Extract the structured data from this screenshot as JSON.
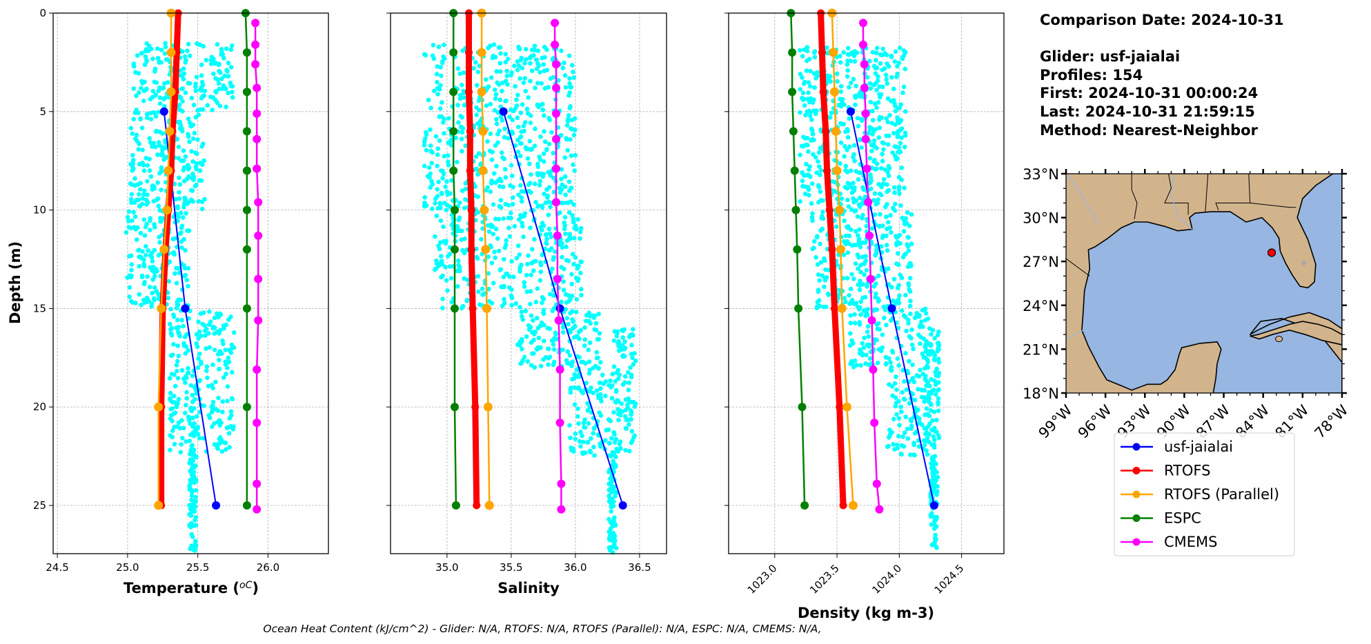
{
  "chart_data": [
    {
      "type": "line",
      "panel": "temperature",
      "xlabel": "Temperature (°C)",
      "ylabel": "Depth (m)",
      "xlim": [
        24.47,
        26.43
      ],
      "ylim": [
        27.45,
        0
      ],
      "xticks": [
        24.5,
        25.0,
        25.5,
        26.0
      ],
      "xtick_labels": [
        "24.5",
        "25.0",
        "25.5",
        "26.0"
      ],
      "yticks": [
        0,
        5,
        10,
        15,
        20,
        25
      ],
      "ytick_labels": [
        "0",
        "5",
        "10",
        "15",
        "20",
        "25"
      ],
      "grid": true,
      "scatter_glider_obs": {
        "name": "usf-jaialai profiles (raw)",
        "color": "#00ffff",
        "bands": [
          {
            "depth_range": [
              1.5,
              5
            ],
            "x_range": [
              25.04,
              25.75
            ]
          },
          {
            "depth_range": [
              5,
              10
            ],
            "x_range": [
              25.02,
              25.55
            ]
          },
          {
            "depth_range": [
              10,
              15
            ],
            "x_range": [
              24.99,
              25.45
            ]
          },
          {
            "depth_range": [
              15,
              22.3
            ],
            "x_range": [
              25.3,
              25.76
            ]
          },
          {
            "depth_range": [
              22.3,
              27.4
            ],
            "x_range": [
              25.44,
              25.49
            ]
          }
        ]
      },
      "series": [
        {
          "name": "usf-jaialai",
          "color": "#0000ff",
          "depth": [
            5,
            15,
            25
          ],
          "values": [
            25.26,
            25.41,
            25.63
          ]
        },
        {
          "name": "RTOFS",
          "color": "#ff0000",
          "depth": [
            0,
            2,
            4,
            6,
            8,
            10,
            12,
            15,
            20,
            25
          ],
          "values": [
            25.36,
            25.35,
            25.34,
            25.32,
            25.31,
            25.29,
            25.27,
            25.25,
            25.24,
            25.24
          ]
        },
        {
          "name": "RTOFS (Parallel)",
          "color": "#ffa500",
          "depth": [
            0,
            2,
            4,
            6,
            8,
            10,
            12,
            15,
            20,
            25
          ],
          "values": [
            25.31,
            25.31,
            25.31,
            25.3,
            25.29,
            25.28,
            25.26,
            25.24,
            25.22,
            25.22
          ]
        },
        {
          "name": "ESPC",
          "color": "#008000",
          "depth": [
            0,
            2,
            4,
            6,
            8,
            10,
            12,
            15,
            20,
            25
          ],
          "values": [
            25.84,
            25.85,
            25.85,
            25.85,
            25.85,
            25.85,
            25.85,
            25.85,
            25.85,
            25.85
          ]
        },
        {
          "name": "CMEMS",
          "color": "#ff00ff",
          "depth": [
            0.5,
            1.6,
            2.6,
            3.8,
            5.1,
            6.4,
            7.9,
            9.6,
            11.3,
            13.5,
            15.6,
            18.1,
            20.8,
            23.9,
            25.2
          ],
          "values": [
            25.91,
            25.91,
            25.91,
            25.92,
            25.92,
            25.92,
            25.92,
            25.93,
            25.93,
            25.93,
            25.93,
            25.92,
            25.92,
            25.92,
            25.92
          ]
        }
      ]
    },
    {
      "type": "line",
      "panel": "salinity",
      "xlabel": "Salinity",
      "xlim": [
        34.56,
        36.71
      ],
      "ylim": [
        27.45,
        0
      ],
      "xticks": [
        35.0,
        35.5,
        36.0,
        36.5
      ],
      "xtick_labels": [
        "35.0",
        "35.5",
        "36.0",
        "36.5"
      ],
      "grid": true,
      "scatter_glider_obs": {
        "name": "usf-jaialai profiles (raw)",
        "color": "#00ffff",
        "bands": [
          {
            "depth_range": [
              1.6,
              10
            ],
            "x_range": [
              34.82,
              36.0
            ]
          },
          {
            "depth_range": [
              10,
              15
            ],
            "x_range": [
              34.9,
              36.05
            ]
          },
          {
            "depth_range": [
              15,
              18
            ],
            "x_range": [
              35.55,
              36.2
            ]
          },
          {
            "depth_range": [
              16,
              22.3
            ],
            "x_range": [
              36.3,
              36.47
            ]
          },
          {
            "depth_range": [
              18,
              22.5
            ],
            "x_range": [
              35.95,
              36.3
            ]
          },
          {
            "depth_range": [
              22.3,
              27.4
            ],
            "x_range": [
              36.26,
              36.32
            ]
          }
        ]
      },
      "series": [
        {
          "name": "usf-jaialai",
          "color": "#0000ff",
          "depth": [
            5,
            15,
            25
          ],
          "values": [
            35.44,
            35.88,
            36.37
          ]
        },
        {
          "name": "RTOFS",
          "color": "#ff0000",
          "depth": [
            0,
            2,
            4,
            6,
            8,
            10,
            12,
            15,
            20,
            25
          ],
          "values": [
            35.17,
            35.17,
            35.17,
            35.18,
            35.18,
            35.19,
            35.19,
            35.2,
            35.22,
            35.23
          ]
        },
        {
          "name": "RTOFS (Parallel)",
          "color": "#ffa500",
          "depth": [
            0,
            2,
            4,
            6,
            8,
            10,
            12,
            15,
            20,
            25
          ],
          "values": [
            35.27,
            35.27,
            35.27,
            35.28,
            35.28,
            35.29,
            35.3,
            35.31,
            35.32,
            35.33
          ]
        },
        {
          "name": "ESPC",
          "color": "#008000",
          "depth": [
            0,
            2,
            4,
            6,
            8,
            10,
            12,
            15,
            20,
            25
          ],
          "values": [
            35.05,
            35.05,
            35.05,
            35.05,
            35.05,
            35.06,
            35.06,
            35.06,
            35.06,
            35.07
          ]
        },
        {
          "name": "CMEMS",
          "color": "#ff00ff",
          "depth": [
            0.5,
            1.6,
            2.6,
            3.8,
            5.1,
            6.4,
            7.9,
            9.6,
            11.3,
            13.5,
            15.6,
            18.1,
            20.8,
            23.9,
            25.2
          ],
          "values": [
            35.84,
            35.84,
            35.85,
            35.85,
            35.85,
            35.85,
            35.85,
            35.85,
            35.86,
            35.86,
            35.87,
            35.88,
            35.88,
            35.89,
            35.89
          ]
        }
      ]
    },
    {
      "type": "line",
      "panel": "density",
      "xlabel": "Density (kg m-3)",
      "xlim": [
        1022.63,
        1024.84
      ],
      "ylim": [
        27.45,
        0
      ],
      "xticks": [
        1023.0,
        1023.5,
        1024.0,
        1024.5
      ],
      "xtick_labels": [
        "1023.0",
        "1023.5",
        "1024.0",
        "1024.5"
      ],
      "grid": true,
      "scatter_glider_obs": {
        "name": "usf-jaialai profiles (raw)",
        "color": "#00ffff",
        "bands": [
          {
            "depth_range": [
              1.7,
              10
            ],
            "x_range": [
              1023.2,
              1024.05
            ]
          },
          {
            "depth_range": [
              10,
              15
            ],
            "x_range": [
              1023.3,
              1024.1
            ]
          },
          {
            "depth_range": [
              15,
              18
            ],
            "x_range": [
              1023.6,
              1024.25
            ]
          },
          {
            "depth_range": [
              16,
              22.5
            ],
            "x_range": [
              1024.2,
              1024.32
            ]
          },
          {
            "depth_range": [
              18,
              22.5
            ],
            "x_range": [
              1023.9,
              1024.2
            ]
          },
          {
            "depth_range": [
              22.5,
              27.4
            ],
            "x_range": [
              1024.25,
              1024.31
            ]
          }
        ]
      },
      "series": [
        {
          "name": "usf-jaialai",
          "color": "#0000ff",
          "depth": [
            5,
            15,
            25
          ],
          "values": [
            1023.61,
            1023.94,
            1024.28
          ]
        },
        {
          "name": "RTOFS",
          "color": "#ff0000",
          "depth": [
            0,
            2,
            4,
            6,
            8,
            10,
            12,
            15,
            20,
            25
          ],
          "values": [
            1023.37,
            1023.38,
            1023.39,
            1023.41,
            1023.42,
            1023.44,
            1023.46,
            1023.48,
            1023.52,
            1023.55
          ]
        },
        {
          "name": "RTOFS (Parallel)",
          "color": "#ffa500",
          "depth": [
            0,
            2,
            4,
            6,
            8,
            10,
            12,
            15,
            20,
            25
          ],
          "values": [
            1023.46,
            1023.47,
            1023.48,
            1023.49,
            1023.5,
            1023.52,
            1023.53,
            1023.54,
            1023.58,
            1023.63
          ]
        },
        {
          "name": "ESPC",
          "color": "#008000",
          "depth": [
            0,
            2,
            4,
            6,
            8,
            10,
            12,
            15,
            20,
            25
          ],
          "values": [
            1023.13,
            1023.14,
            1023.14,
            1023.15,
            1023.16,
            1023.17,
            1023.18,
            1023.19,
            1023.22,
            1023.24
          ]
        },
        {
          "name": "CMEMS",
          "color": "#ff00ff",
          "depth": [
            0.5,
            1.6,
            2.6,
            3.8,
            5.1,
            6.4,
            7.9,
            9.6,
            11.3,
            13.5,
            15.6,
            18.1,
            20.8,
            23.9,
            25.2
          ],
          "values": [
            1023.71,
            1023.71,
            1023.72,
            1023.72,
            1023.73,
            1023.73,
            1023.74,
            1023.75,
            1023.76,
            1023.77,
            1023.78,
            1023.79,
            1023.8,
            1023.82,
            1023.84
          ]
        }
      ]
    },
    {
      "type": "map",
      "panel": "location",
      "lon_range": [
        -99,
        -78
      ],
      "lat_range": [
        18,
        33
      ],
      "xticks": [
        -99,
        -96,
        -93,
        -90,
        -87,
        -84,
        -81,
        -78
      ],
      "xtick_labels": [
        "99°W",
        "96°W",
        "93°W",
        "90°W",
        "87°W",
        "84°W",
        "81°W",
        "78°W"
      ],
      "yticks": [
        18,
        21,
        24,
        27,
        30,
        33
      ],
      "ytick_labels": [
        "18°N",
        "21°N",
        "24°N",
        "27°N",
        "30°N",
        "33°N"
      ],
      "land_color": "#d2b48c",
      "ocean_color": "#97b6e1",
      "glider_position": {
        "lon": -83.35,
        "lat": 27.6,
        "color": "#ff0000"
      }
    }
  ],
  "info": {
    "comparison_date": "Comparison Date: 2024-10-31",
    "glider": "Glider: usf-jaialai",
    "profiles": "Profiles: 154",
    "first": "First: 2024-10-31 00:00:24",
    "last": "Last: 2024-10-31 21:59:15",
    "method": "Method: Nearest-Neighbor"
  },
  "legend": [
    {
      "label": "usf-jaialai",
      "color": "#0000ff"
    },
    {
      "label": "RTOFS",
      "color": "#ff0000"
    },
    {
      "label": "RTOFS (Parallel)",
      "color": "#ffa500"
    },
    {
      "label": "ESPC",
      "color": "#008000"
    },
    {
      "label": "CMEMS",
      "color": "#ff00ff"
    }
  ],
  "labels": {
    "depth_axis": "Depth (m)",
    "temperature_axis_main": "Temperature (",
    "temperature_axis_unit": "oC",
    "temperature_axis_close": ")",
    "salinity_axis": "Salinity",
    "density_axis": "Density (kg m-3)"
  },
  "footer": "Ocean Heat Content (kJ/cm^2) - Glider: N/A,  RTOFS: N/A,  RTOFS (Parallel): N/A,  ESPC: N/A,  CMEMS: N/A,"
}
